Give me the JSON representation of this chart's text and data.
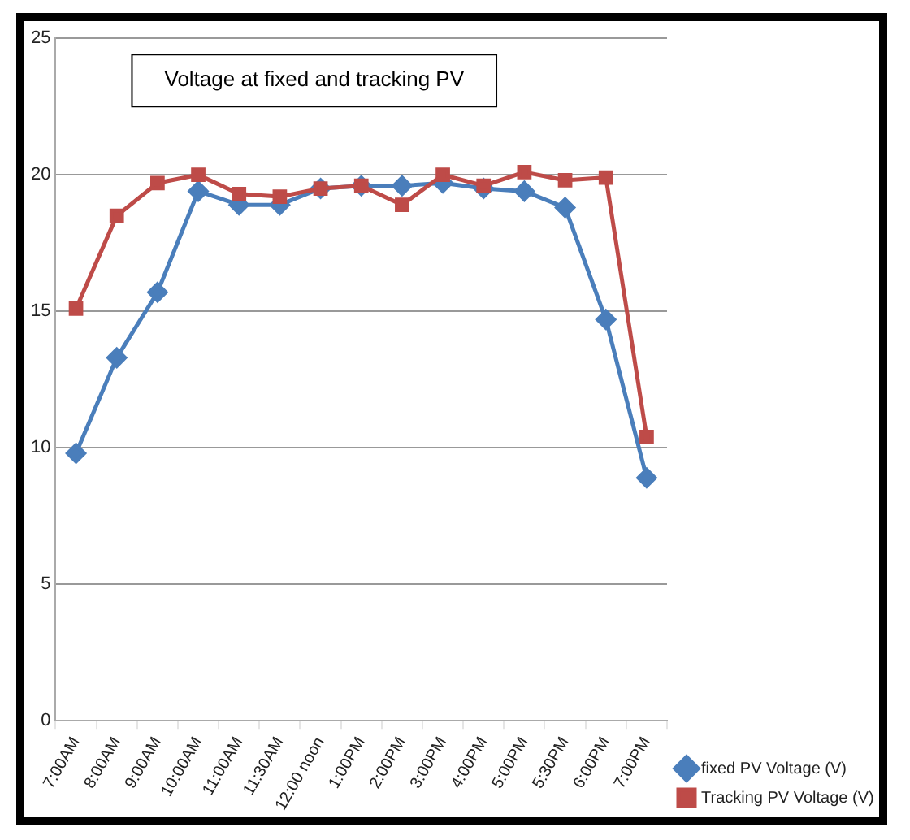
{
  "chart_data": {
    "type": "line",
    "title": "Voltage at fixed and tracking PV",
    "categories": [
      "7:00AM",
      "8:00AM",
      "9:00AM",
      "10:00AM",
      "11:00AM",
      "11:30AM",
      "12:00 noon",
      "1:00PM",
      "2:00PM",
      "3:00PM",
      "4:00PM",
      "5:00PM",
      "5:30PM",
      "6:00PM",
      "7:00PM"
    ],
    "series": [
      {
        "name": "fixed PV Voltage (V)",
        "color": "#4a7ebb",
        "marker": "diamond",
        "values": [
          9.8,
          13.3,
          15.7,
          19.4,
          18.9,
          18.9,
          19.5,
          19.6,
          19.6,
          19.7,
          19.5,
          19.4,
          18.8,
          14.7,
          8.9
        ]
      },
      {
        "name": "Tracking PV Voltage (V)",
        "color": "#be4b48",
        "marker": "square",
        "values": [
          15.1,
          18.5,
          19.7,
          20.0,
          19.3,
          19.2,
          19.5,
          19.6,
          18.9,
          20.0,
          19.6,
          20.1,
          19.8,
          19.9,
          10.4
        ]
      }
    ],
    "ylim": [
      0,
      25
    ],
    "yticks": [
      0,
      5,
      10,
      15,
      20,
      25
    ],
    "grid": "y",
    "legend": "bottom right"
  }
}
